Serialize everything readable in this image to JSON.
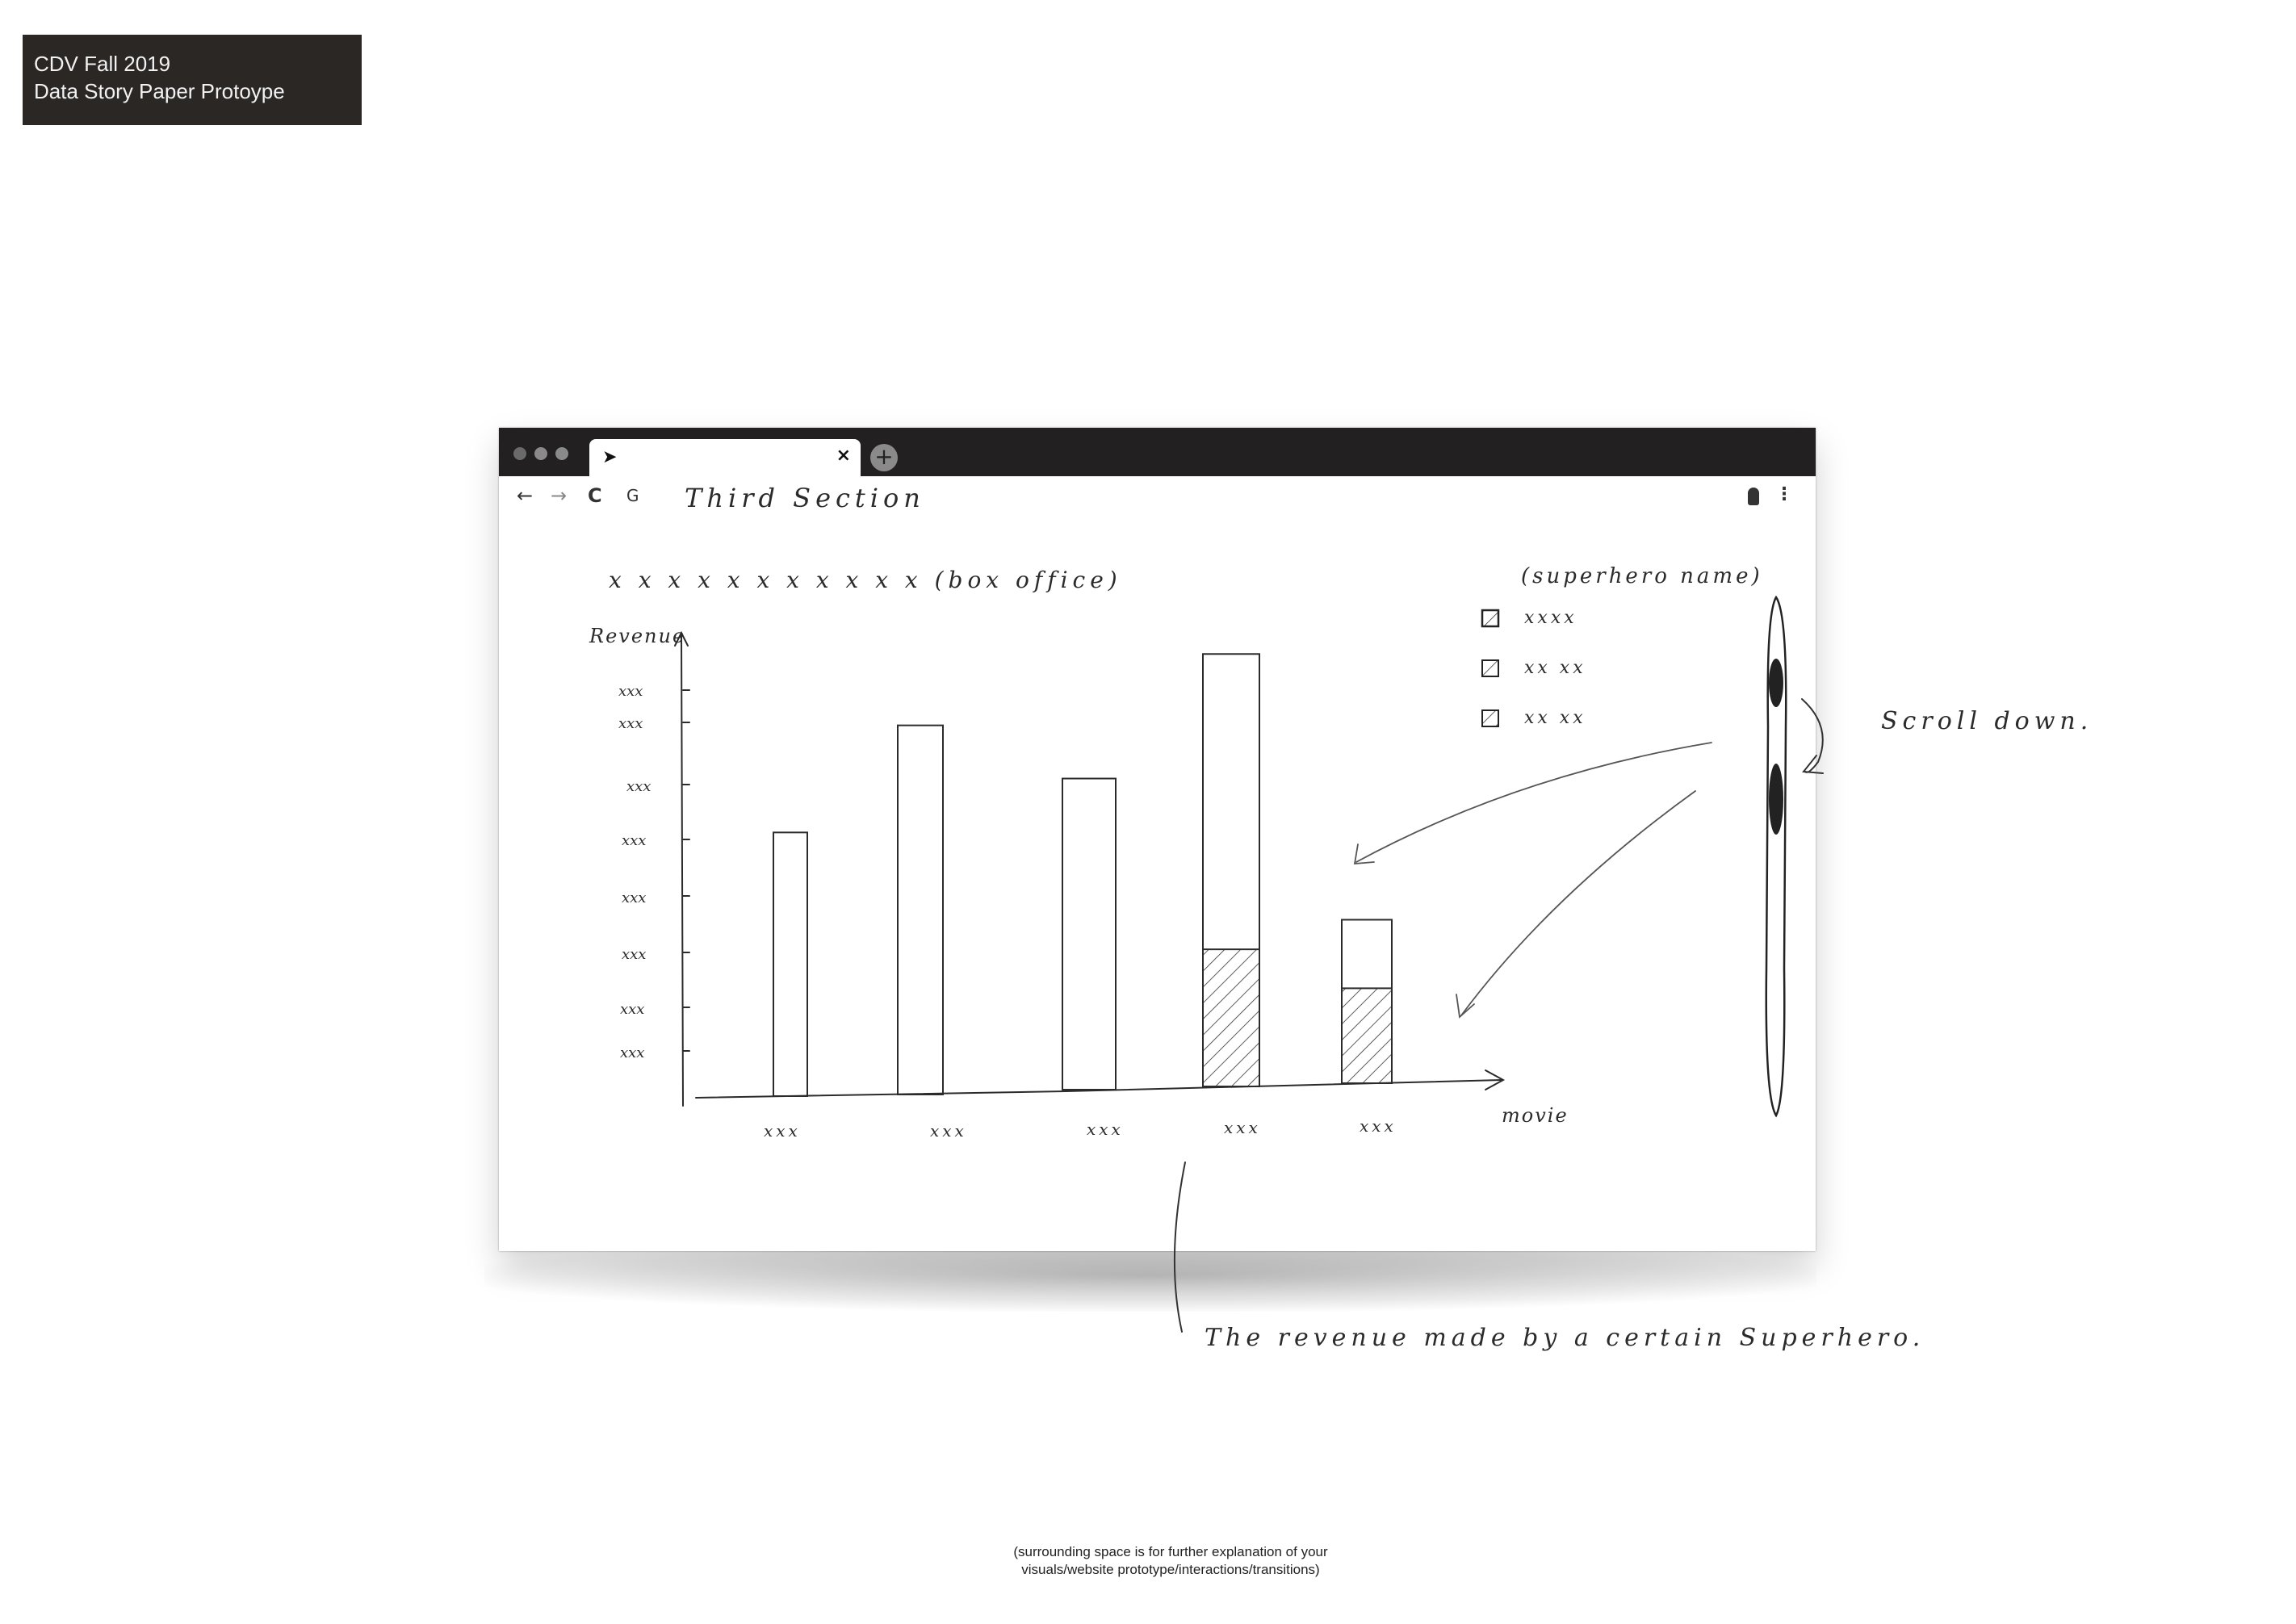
{
  "header": {
    "line1": "CDV Fall 2019",
    "line2": "Data Story Paper Protoype"
  },
  "browser": {
    "tab_cursor_icon": "cursor-arrow-icon",
    "tab_close": "×",
    "newtab": "+",
    "nav": {
      "back": "←",
      "forward": "→",
      "reload": "C",
      "google": "G"
    },
    "url_text": "Third Section",
    "menu": "⋮"
  },
  "chart_title": "x x x x x x x x x x x  (box office)",
  "legend": {
    "title": "(superhero name)",
    "items": [
      "xxxx",
      "xx xx",
      "xx xx"
    ]
  },
  "chart_data": {
    "type": "bar",
    "title": "x x x x x x x x x x x  (box office)",
    "ylabel": "Revenue",
    "xlabel": "movie",
    "y_tick_labels": [
      "xxx",
      "xxx",
      "xxx",
      "xxx",
      "xxx",
      "xxx",
      "xxx",
      "xxx"
    ],
    "categories": [
      "xxx",
      "xxx",
      "xxx",
      "xxx",
      "xxx"
    ],
    "series": [
      {
        "values": [
          5,
          7,
          5.9,
          8.2,
          3.1
        ]
      }
    ],
    "highlighted_segments": [
      {
        "category_index": 3,
        "value": 2.6
      },
      {
        "category_index": 4,
        "value": 1.8
      }
    ],
    "ylim": [
      0,
      9
    ],
    "grid": false,
    "legend_placement": "top-right"
  },
  "annotations": {
    "scroll": "Scroll down.",
    "note": "The revenue made by a certain Superhero."
  },
  "footer": {
    "line1": "(surrounding space is for further explanation of your",
    "line2": "visuals/website prototype/interactions/transitions)"
  }
}
